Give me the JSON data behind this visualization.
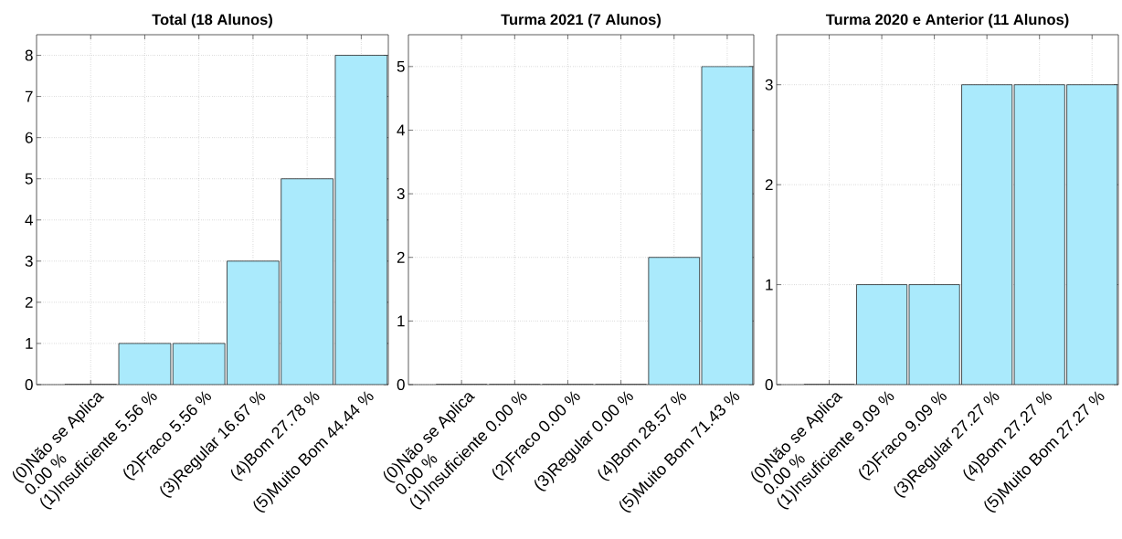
{
  "chart_data": [
    {
      "type": "bar",
      "title": "Total (18 Alunos)",
      "categories": [
        "(0)Não se Aplica 0.00 %",
        "(1)Insuficiente 5.56 %",
        "(2)Fraco 5.56 %",
        "(3)Regular 16.67 %",
        "(4)Bom 27.78 %",
        "(5)Muito Bom 44.44 %"
      ],
      "values": [
        0,
        1,
        1,
        3,
        5,
        8
      ],
      "color": "#aaeafc",
      "ylim": [
        0,
        8.5
      ],
      "yticks": [
        0,
        1,
        2,
        3,
        4,
        5,
        6,
        7,
        8
      ],
      "grid": true
    },
    {
      "type": "bar",
      "title": "Turma 2021 (7 Alunos)",
      "categories": [
        "(0)Não se Aplica 0.00 %",
        "(1)Insuficiente 0.00 %",
        "(2)Fraco 0.00 %",
        "(3)Regular 0.00 %",
        "(4)Bom 28.57 %",
        "(5)Muito Bom 71.43 %"
      ],
      "values": [
        0,
        0,
        0,
        0,
        2,
        5
      ],
      "color": "#aaeafc",
      "ylim": [
        0,
        5.5
      ],
      "yticks": [
        0,
        1,
        2,
        3,
        4,
        5
      ],
      "grid": true
    },
    {
      "type": "bar",
      "title": "Turma 2020 e Anterior (11 Alunos)",
      "categories": [
        "(0)Não se Aplica 0.00 %",
        "(1)Insuficiente 9.09 %",
        "(2)Fraco 9.09 %",
        "(3)Regular 27.27 %",
        "(4)Bom 27.27 %",
        "(5)Muito Bom 27.27 %"
      ],
      "values": [
        0,
        1,
        1,
        3,
        3,
        3
      ],
      "color": "#aaeafc",
      "ylim": [
        0,
        3.5
      ],
      "yticks": [
        0,
        1,
        2,
        3
      ],
      "grid": true
    }
  ]
}
